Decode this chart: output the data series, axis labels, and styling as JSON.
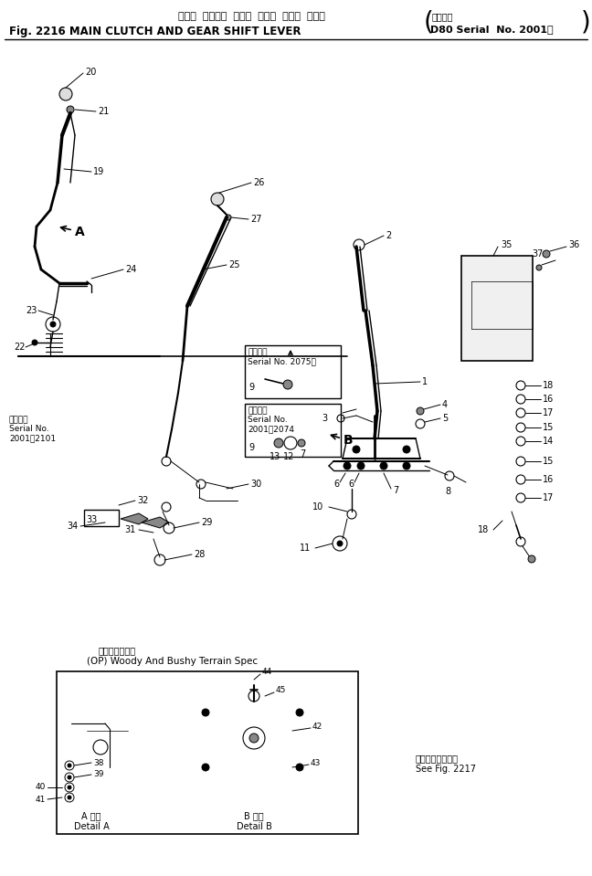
{
  "title_jp": "メイン  クラッチ  および  ギヤー  シフト  レバー",
  "title_en": "Fig. 2216 MAIN CLUTCH AND GEAR SHIFT LEVER",
  "serial_label": "D80 Serial  No. 2001～",
  "header_note_jp": "適用号機",
  "woody_jp": "草林草木地専用",
  "woody_en": "(OP) Woody And Bushy Terrain Spec",
  "see_fig_jp": "第２２１７図参照",
  "see_fig_en": "See Fig. 2217",
  "detail_a_jp": "A 詳細",
  "detail_a_en": "Detail A",
  "detail_b_jp": "B 詳細",
  "detail_b_en": "Detail B",
  "serial_left_jp": "適用号機\nSerial No.\n2001～2101",
  "serial_box1_line1": "適用号機",
  "serial_box1_line2": "Serial No. 2075～",
  "serial_box2_line1": "適用号機",
  "serial_box2_line2": "Serial No.",
  "serial_box2_line3": "2001～2074",
  "bg_color": "#ffffff"
}
